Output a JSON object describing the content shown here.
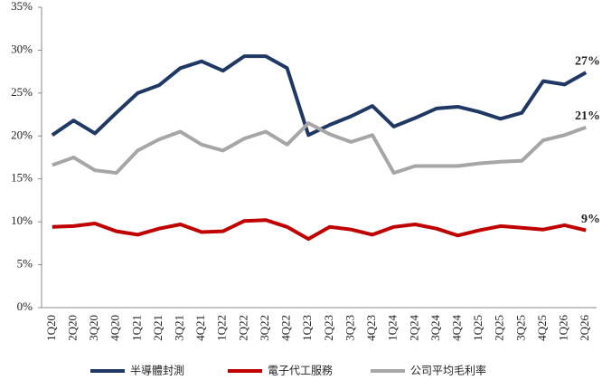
{
  "chart_data": {
    "type": "line",
    "categories": [
      "1Q20",
      "2Q20",
      "3Q20",
      "4Q20",
      "1Q21",
      "2Q21",
      "3Q21",
      "4Q21",
      "1Q22",
      "2Q22",
      "3Q22",
      "4Q22",
      "1Q23",
      "2Q23",
      "3Q23",
      "4Q23",
      "1Q24",
      "2Q24",
      "3Q24",
      "4Q24",
      "1Q25",
      "2Q25",
      "3Q25",
      "4Q25",
      "1Q26",
      "2Q26"
    ],
    "series": [
      {
        "name": "半導體封測",
        "color": "#1f3864",
        "values": [
          20.1,
          21.8,
          20.3,
          22.7,
          25.0,
          25.9,
          27.9,
          28.7,
          27.6,
          29.3,
          29.3,
          27.9,
          20.1,
          21.3,
          22.3,
          23.5,
          21.1,
          22.1,
          23.2,
          23.4,
          22.8,
          22.0,
          22.7,
          26.4,
          26.0,
          27.4
        ],
        "value_labels": [
          null,
          null,
          null,
          null,
          null,
          null,
          null,
          null,
          null,
          null,
          null,
          null,
          null,
          null,
          null,
          null,
          null,
          null,
          null,
          null,
          null,
          null,
          null,
          null,
          null,
          "27%"
        ]
      },
      {
        "name": "電子代工服務",
        "color": "#c00000",
        "values": [
          9.4,
          9.5,
          9.8,
          8.9,
          8.5,
          9.2,
          9.7,
          8.8,
          8.9,
          10.1,
          10.2,
          9.4,
          8.0,
          9.4,
          9.1,
          8.5,
          9.4,
          9.7,
          9.2,
          8.4,
          9.0,
          9.5,
          9.3,
          9.1,
          9.6,
          9.0
        ],
        "value_labels": [
          null,
          null,
          null,
          null,
          null,
          null,
          null,
          null,
          null,
          null,
          null,
          null,
          null,
          null,
          null,
          null,
          null,
          null,
          null,
          null,
          null,
          null,
          null,
          null,
          null,
          "9%"
        ]
      },
      {
        "name": "公司平均毛利率",
        "color": "#a6a6a6",
        "values": [
          16.6,
          17.5,
          16.0,
          15.7,
          18.3,
          19.6,
          20.5,
          19.0,
          18.3,
          19.7,
          20.5,
          19.0,
          21.5,
          20.2,
          19.3,
          20.1,
          15.7,
          16.5,
          16.5,
          16.5,
          16.8,
          17.0,
          17.1,
          19.5,
          20.1,
          21.0
        ],
        "value_labels": [
          null,
          null,
          null,
          null,
          null,
          null,
          null,
          null,
          null,
          null,
          null,
          null,
          null,
          null,
          null,
          null,
          null,
          null,
          null,
          null,
          null,
          null,
          null,
          null,
          null,
          "21%"
        ]
      }
    ],
    "ylim": [
      0,
      35
    ],
    "yticks": [
      {
        "value": 0,
        "label": "0%"
      },
      {
        "value": 5,
        "label": "5%"
      },
      {
        "value": 10,
        "label": "10%"
      },
      {
        "value": 15,
        "label": "15%"
      },
      {
        "value": 20,
        "label": "20%"
      },
      {
        "value": 25,
        "label": "25%"
      },
      {
        "value": 30,
        "label": "30%"
      },
      {
        "value": 35,
        "label": "35%"
      }
    ],
    "grid": false,
    "legend": "bottom"
  }
}
